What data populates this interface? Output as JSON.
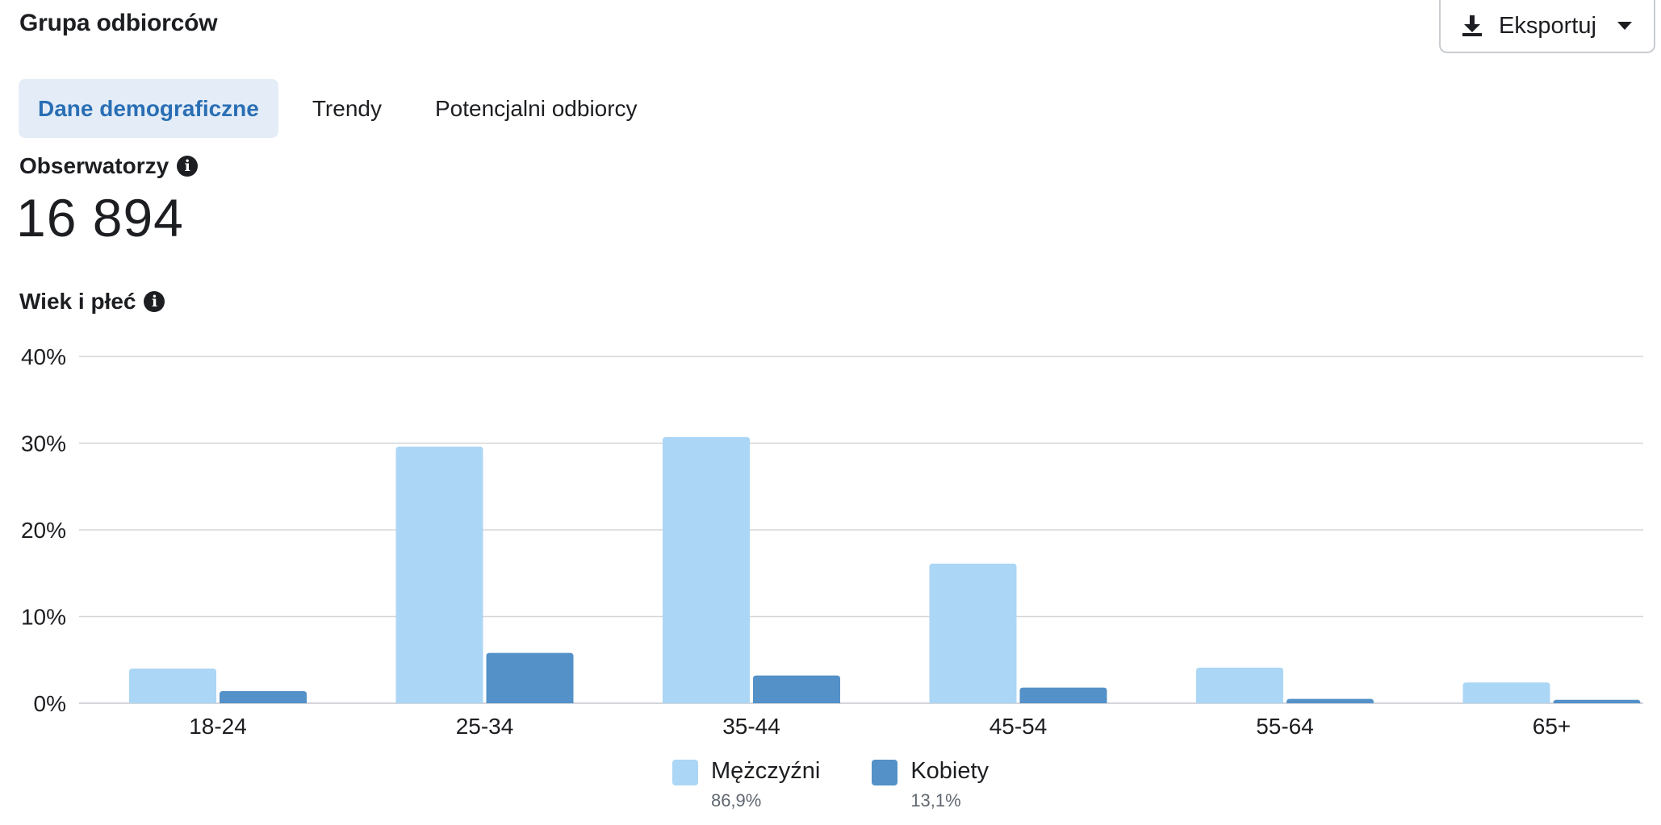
{
  "header": {
    "title": "Grupa odbiorców",
    "export_label": "Eksportuj",
    "export_icon": "download-icon",
    "caret_icon": "caret-down-icon"
  },
  "tabs": [
    {
      "label": "Dane demograficzne",
      "active": true
    },
    {
      "label": "Trendy",
      "active": false
    },
    {
      "label": "Potencjalni odbiorcy",
      "active": false
    }
  ],
  "followers": {
    "label": "Obserwatorzy",
    "value": "16 894",
    "info_icon": "info-icon"
  },
  "chart_section": {
    "title": "Wiek i płeć",
    "info_icon": "info-icon"
  },
  "colors": {
    "men": "#acd6f5",
    "women": "#5391c8",
    "grid": "#d4d6da",
    "axis_text": "#1c1e21",
    "active_tab_bg": "#e4edf7",
    "active_tab_text": "#2a6fb5"
  },
  "chart_data": {
    "type": "bar",
    "categories": [
      "18-24",
      "25-34",
      "35-44",
      "45-54",
      "55-64",
      "65+"
    ],
    "series": [
      {
        "name": "Mężczyźni",
        "values": [
          4.0,
          29.6,
          30.7,
          16.1,
          4.1,
          2.4
        ]
      },
      {
        "name": "Kobiety",
        "values": [
          1.4,
          5.8,
          3.2,
          1.8,
          0.5,
          0.4
        ]
      }
    ],
    "yticks": [
      "40%",
      "30%",
      "20%",
      "10%",
      "0%"
    ],
    "ylim": [
      0,
      40
    ],
    "grid": true,
    "legend_position": "bottom-center",
    "legend": [
      {
        "name": "Mężczyźni",
        "share": "86,9%"
      },
      {
        "name": "Kobiety",
        "share": "13,1%"
      }
    ]
  }
}
